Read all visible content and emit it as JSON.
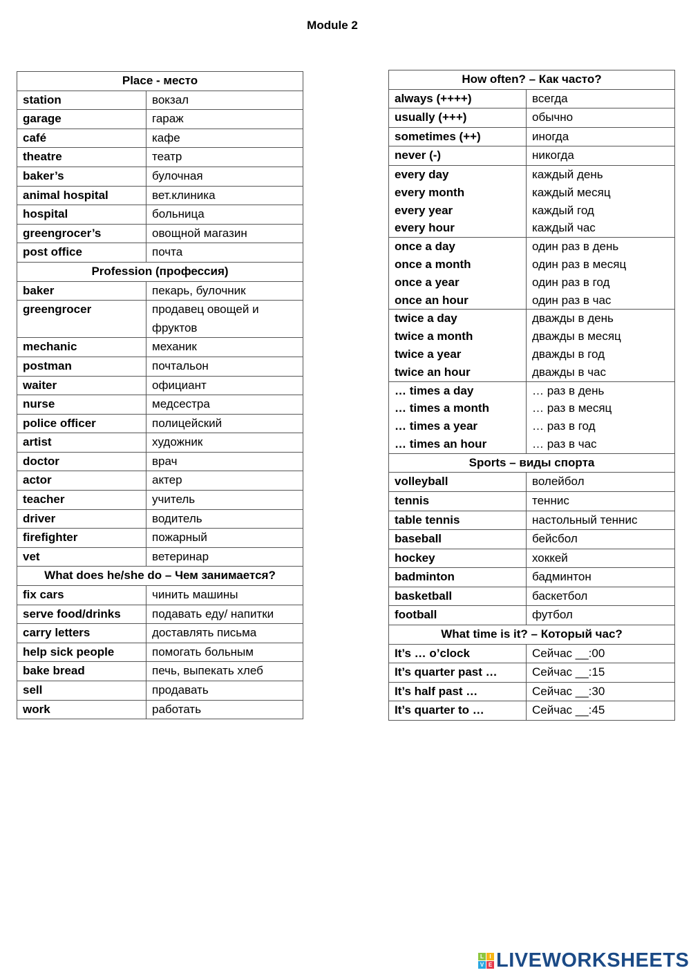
{
  "title": "Module 2",
  "left_table": [
    {
      "header": "Place - место"
    },
    {
      "en": [
        "station"
      ],
      "ru": [
        "вокзал"
      ]
    },
    {
      "en": [
        "garage"
      ],
      "ru": [
        "гараж"
      ]
    },
    {
      "en": [
        "café"
      ],
      "ru": [
        "кафе"
      ]
    },
    {
      "en": [
        "theatre"
      ],
      "ru": [
        "театр"
      ]
    },
    {
      "en": [
        "baker’s"
      ],
      "ru": [
        "булочная"
      ]
    },
    {
      "en": [
        "animal hospital"
      ],
      "ru": [
        "вет.клиника"
      ]
    },
    {
      "en": [
        "hospital"
      ],
      "ru": [
        "больница"
      ]
    },
    {
      "en": [
        "greengrocer’s"
      ],
      "ru": [
        "овощной магазин"
      ]
    },
    {
      "en": [
        "post office"
      ],
      "ru": [
        "почта"
      ]
    },
    {
      "header": "Profession (профессия)"
    },
    {
      "en": [
        "baker"
      ],
      "ru": [
        "пекарь, булочник"
      ]
    },
    {
      "en": [
        "greengrocer"
      ],
      "ru": [
        "продавец овощей и",
        "фруктов"
      ]
    },
    {
      "en": [
        "mechanic"
      ],
      "ru": [
        "механик"
      ]
    },
    {
      "en": [
        "postman"
      ],
      "ru": [
        "почтальон"
      ]
    },
    {
      "en": [
        "waiter"
      ],
      "ru": [
        "официант"
      ]
    },
    {
      "en": [
        "nurse"
      ],
      "ru": [
        "медсестра"
      ]
    },
    {
      "en": [
        "police officer"
      ],
      "ru": [
        "полицейский"
      ]
    },
    {
      "en": [
        "artist"
      ],
      "ru": [
        "художник"
      ]
    },
    {
      "en": [
        "doctor"
      ],
      "ru": [
        "врач"
      ]
    },
    {
      "en": [
        "actor"
      ],
      "ru": [
        "актер"
      ]
    },
    {
      "en": [
        "teacher"
      ],
      "ru": [
        "учитель"
      ]
    },
    {
      "en": [
        "driver"
      ],
      "ru": [
        "водитель"
      ]
    },
    {
      "en": [
        "firefighter"
      ],
      "ru": [
        "пожарный"
      ]
    },
    {
      "en": [
        "vet"
      ],
      "ru": [
        "ветеринар"
      ]
    },
    {
      "header": "What does he/she do – Чем занимается?"
    },
    {
      "en": [
        "fix cars"
      ],
      "ru": [
        "чинить машины"
      ]
    },
    {
      "en": [
        "serve food/drinks"
      ],
      "ru": [
        "подавать еду/ напитки"
      ]
    },
    {
      "en": [
        "carry letters"
      ],
      "ru": [
        "доставлять письма"
      ]
    },
    {
      "en": [
        "help sick people"
      ],
      "ru": [
        "помогать больным"
      ]
    },
    {
      "en": [
        "bake bread"
      ],
      "ru": [
        "печь, выпекать хлеб"
      ]
    },
    {
      "en": [
        "sell"
      ],
      "ru": [
        "продавать"
      ]
    },
    {
      "en": [
        "work"
      ],
      "ru": [
        "работать"
      ]
    }
  ],
  "right_table": [
    {
      "header": "How often? – Как часто?"
    },
    {
      "en": [
        "always (++++)"
      ],
      "ru": [
        "всегда"
      ]
    },
    {
      "en": [
        "usually (+++)"
      ],
      "ru": [
        "обычно"
      ]
    },
    {
      "en": [
        "sometimes (++)"
      ],
      "ru": [
        "иногда"
      ]
    },
    {
      "en": [
        "never (-)"
      ],
      "ru": [
        "никогда"
      ]
    },
    {
      "group": true,
      "en": [
        "every day",
        "every month",
        "every year",
        "every hour"
      ],
      "ru": [
        "каждый день",
        "каждый месяц",
        "каждый год",
        "каждый час"
      ]
    },
    {
      "group": true,
      "en": [
        "once a day",
        "once a month",
        "once a year",
        "once an hour"
      ],
      "ru": [
        "один раз в день",
        "один раз в месяц",
        "один раз в год",
        "один раз в час"
      ]
    },
    {
      "group": true,
      "en": [
        "twice a day",
        "twice a month",
        "twice a year",
        "twice an hour"
      ],
      "ru": [
        "дважды в день",
        "дважды в месяц",
        "дважды в год",
        "дважды в час"
      ]
    },
    {
      "group": true,
      "en": [
        "… times a day",
        "… times a month",
        "… times a year",
        "… times an hour"
      ],
      "ru": [
        "… раз в день",
        "… раз в месяц",
        "… раз в год",
        "… раз в час"
      ]
    },
    {
      "header": "Sports – виды спорта"
    },
    {
      "en": [
        "volleyball"
      ],
      "ru": [
        "волейбол"
      ]
    },
    {
      "en": [
        "tennis"
      ],
      "ru": [
        "теннис"
      ]
    },
    {
      "en": [
        "table tennis"
      ],
      "ru": [
        "настольный теннис"
      ]
    },
    {
      "en": [
        "baseball"
      ],
      "ru": [
        "бейсбол"
      ]
    },
    {
      "en": [
        "hockey"
      ],
      "ru": [
        "хоккей"
      ]
    },
    {
      "en": [
        "badminton"
      ],
      "ru": [
        "бадминтон"
      ]
    },
    {
      "en": [
        "basketball"
      ],
      "ru": [
        "баскетбол"
      ]
    },
    {
      "en": [
        "football"
      ],
      "ru": [
        "футбол"
      ]
    },
    {
      "header": "What time is it? – Который час?"
    },
    {
      "en": [
        "It’s … o’clock"
      ],
      "ru": [
        "Сейчас  __:00"
      ]
    },
    {
      "en": [
        "It’s quarter past …"
      ],
      "ru": [
        "Сейчас  __:15"
      ]
    },
    {
      "en": [
        "It’s half past …"
      ],
      "ru": [
        "Сейчас  __:30"
      ]
    },
    {
      "en": [
        "It’s quarter to …"
      ],
      "ru": [
        "Сейчас  __:45"
      ]
    }
  ],
  "logo": {
    "text": "LIVEWORKSHEETS",
    "letters": [
      "L",
      "I",
      "V",
      "E"
    ],
    "colors": [
      "#8dc63f",
      "#f7b515",
      "#2aa6df",
      "#e63a4b"
    ],
    "text_color": "#1b4a86"
  }
}
